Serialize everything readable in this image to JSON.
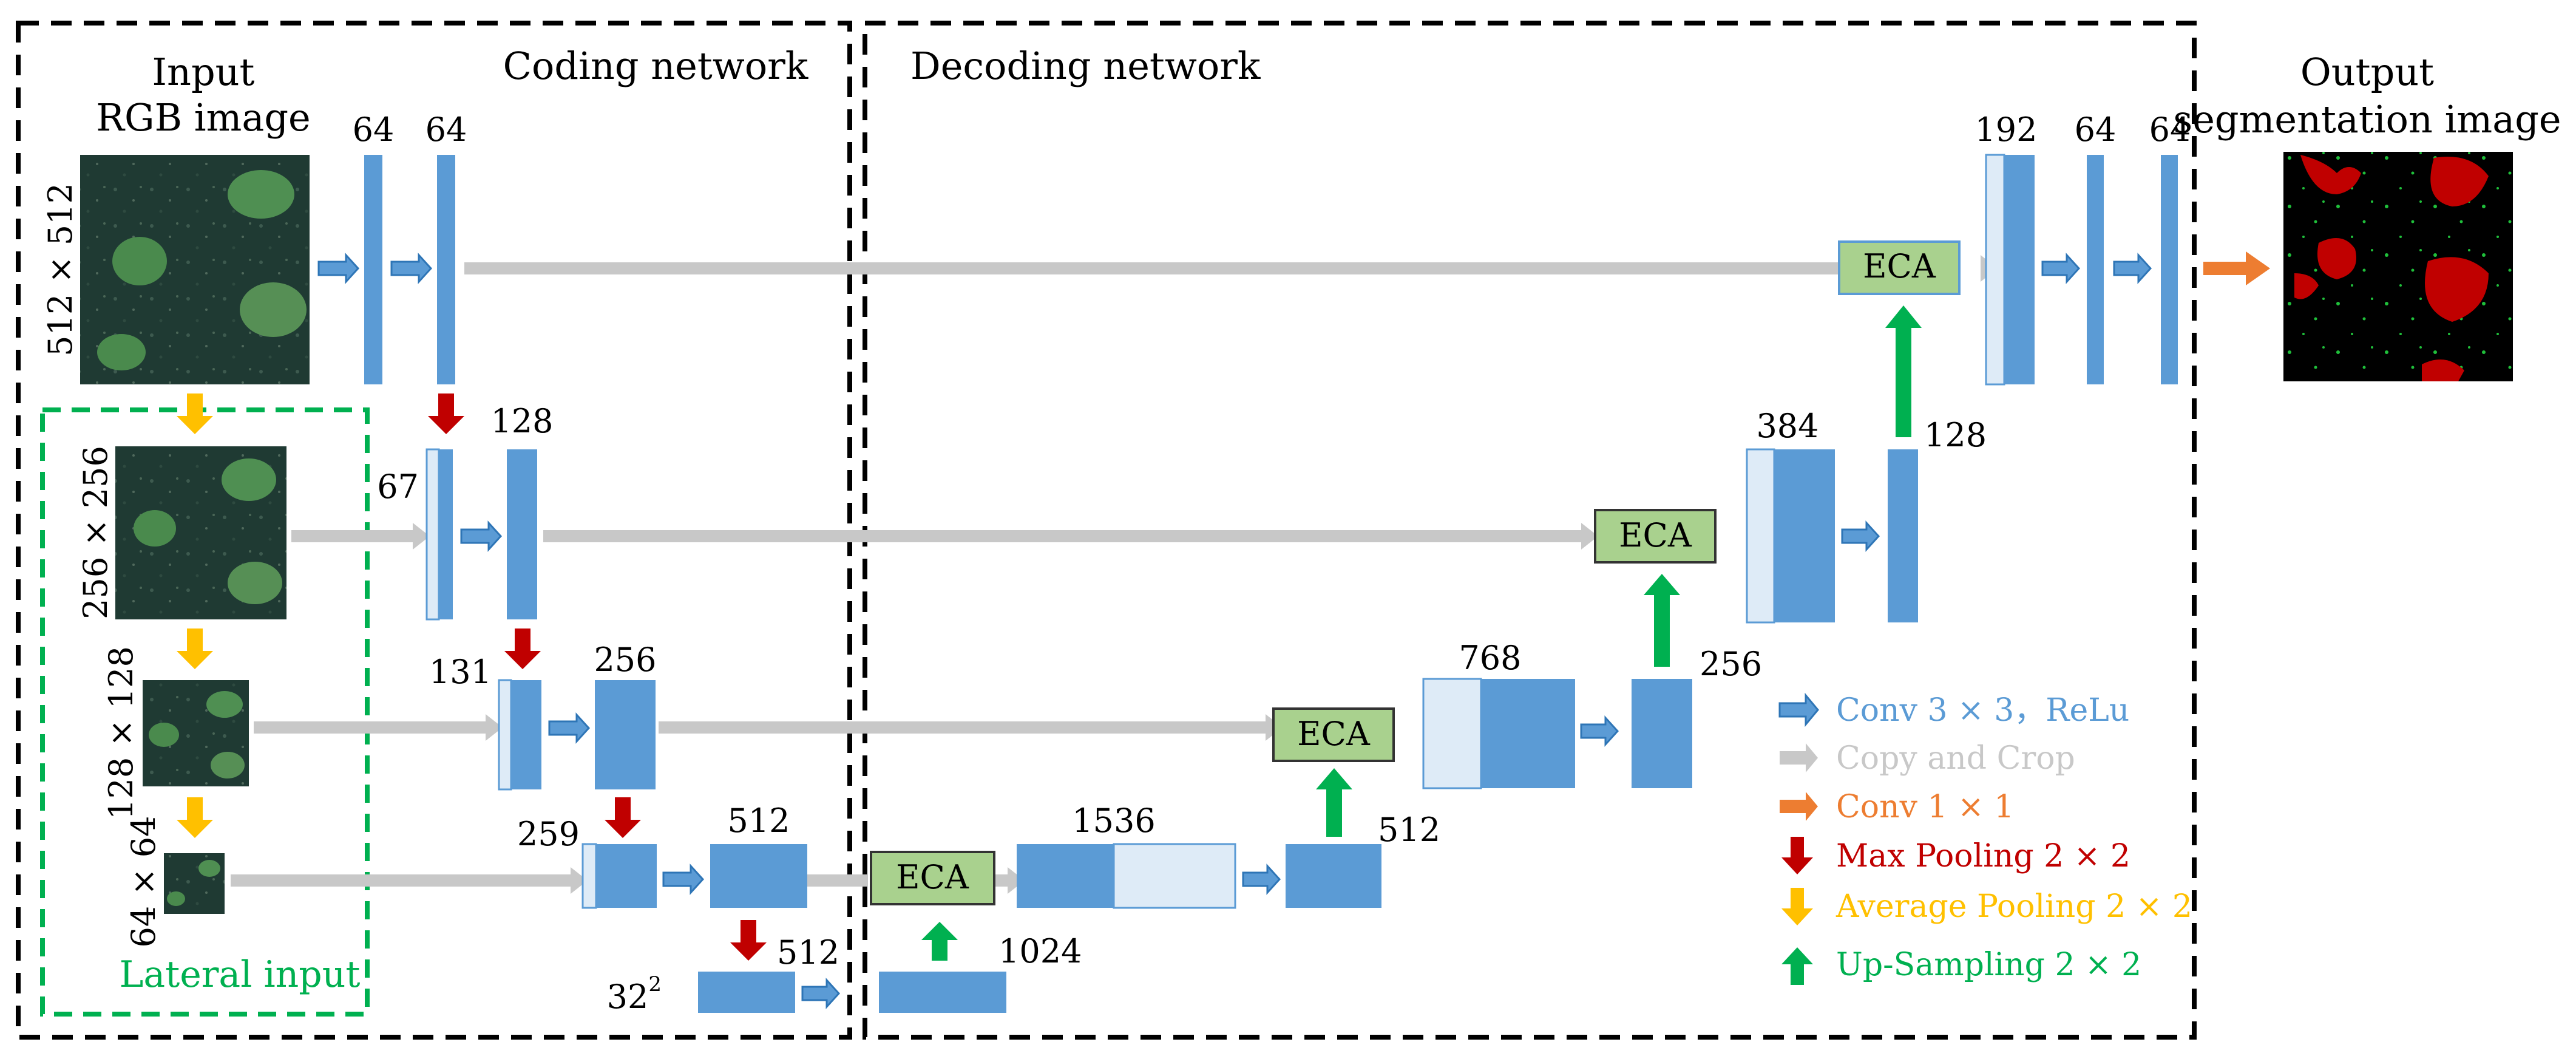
{
  "sections": {
    "input_title_line1": "Input",
    "input_title_line2": "RGB image",
    "coding": "Coding network",
    "decoding": "Decoding network",
    "output_line1": "Output",
    "output_line2": "segmentation image",
    "lateral": "Lateral input"
  },
  "sizes": {
    "s512": "512 × 512",
    "s256": "256 × 256",
    "s128": "128 × 128",
    "s64": "64 × 64",
    "s32": "32",
    "s32_exp": "2"
  },
  "channels": {
    "c64a": "64",
    "c64b": "64",
    "c67": "67",
    "c128": "128",
    "c131": "131",
    "c256": "256",
    "c259": "259",
    "c512": "512",
    "c512b": "512",
    "c1024": "1024",
    "c1536": "1536",
    "c512c": "512",
    "c768": "768",
    "c256b": "256",
    "c384": "384",
    "c128b": "128",
    "c192": "192",
    "c64c": "64",
    "c64d": "64"
  },
  "eca_label": "ECA",
  "legend": [
    {
      "label": "Conv 3 × 3，ReLu",
      "color": "#5b9bd5"
    },
    {
      "label": "Copy and Crop",
      "color": "#c8c8c8"
    },
    {
      "label": "Conv 1 × 1",
      "color": "#ed7d31"
    },
    {
      "label": "Max Pooling 2 × 2",
      "color": "#c00000"
    },
    {
      "label": "Average Pooling 2 × 2",
      "color": "#ffc000"
    },
    {
      "label": "Up-Sampling 2 × 2",
      "color": "#00b050"
    }
  ],
  "colors": {
    "block": "#5b9bd5",
    "block_light": "#deebf7",
    "eca_fill": "#a9d18e",
    "copy": "#c8c8c8",
    "dashed": "#000000",
    "lateral_box": "#00b050"
  }
}
